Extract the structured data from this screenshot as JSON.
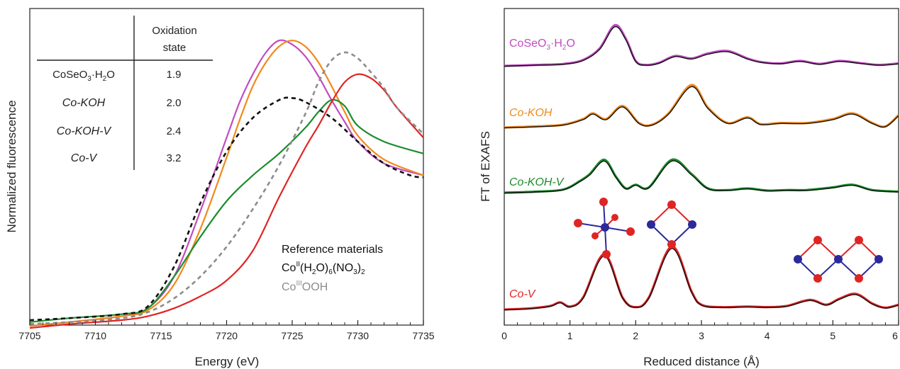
{
  "colors": {
    "CoSeO3_H2O": "#c04cc0",
    "Co_KOH": "#f08a1c",
    "Co_KOH_V": "#1c8c2c",
    "Co_V": "#e02424",
    "ref_CoII": "#111111",
    "ref_CoIII": "#8c8c8c",
    "axis": "#222222",
    "fit": "#111111",
    "O_atom": "#e02424",
    "Co_atom": "#2a2a9c"
  },
  "xanes": {
    "xlabel": "Energy (eV)",
    "ylabel": "Normalized fluorescence",
    "xticks": [
      "7705",
      "7710",
      "7715",
      "7720",
      "7725",
      "7730",
      "7735"
    ],
    "table": {
      "header_line1": "Oxidation",
      "header_line2": "state",
      "rows": [
        {
          "sample_main": "CoSeO",
          "sample_sub": "3",
          "sample_mid": "·H",
          "sample_sub2": "2",
          "sample_end": "O",
          "value": "1.9"
        },
        {
          "sample": "Co-KOH",
          "value": "2.0"
        },
        {
          "sample": "Co-KOH-V",
          "value": "2.4"
        },
        {
          "sample": "Co-V",
          "value": "3.2"
        }
      ]
    },
    "reference": {
      "title": "Reference materials",
      "ref1": {
        "base": "Co",
        "sup": "II",
        "p1": "(H",
        "sub1": "2",
        "p2": "O)",
        "sub2": "6",
        "p3": "(NO",
        "sub3": "3",
        "p4": ")",
        "sub4": "2"
      },
      "ref2": {
        "base": "Co",
        "sup": "III",
        "rest": "OOH"
      }
    }
  },
  "exafs": {
    "xlabel": "Reduced distance (Å)",
    "ylabel": "FT of EXAFS",
    "xticks": [
      "0",
      "1",
      "2",
      "3",
      "4",
      "5",
      "6"
    ],
    "labels": {
      "CoSeO3": {
        "main": "CoSeO",
        "sub": "3",
        "mid": "·H",
        "sub2": "2",
        "end": "O"
      },
      "Co_KOH": "Co-KOH",
      "Co_KOH_V": "Co-KOH-V",
      "Co_V": "Co-V"
    }
  },
  "chart_data": [
    {
      "type": "line",
      "xlabel": "Energy (eV)",
      "ylabel": "Normalized fluorescence",
      "xlim": [
        7705,
        7735
      ],
      "ylim": [
        0,
        1.62
      ],
      "xaxis_ticks": [
        7705,
        7710,
        7715,
        7720,
        7725,
        7730,
        7735
      ],
      "yticks_shown": false,
      "series": [
        {
          "name": "CoSeO3·H2O",
          "style": "solid",
          "color": "#c04cc0",
          "x": [
            7705,
            7708,
            7712,
            7714,
            7716,
            7718,
            7720,
            7721,
            7722,
            7723,
            7724,
            7725,
            7726,
            7727,
            7728,
            7729,
            7730,
            7732,
            7735
          ],
          "y": [
            0.17,
            0.19,
            0.22,
            0.26,
            0.42,
            0.75,
            1.12,
            1.3,
            1.44,
            1.55,
            1.61,
            1.59,
            1.53,
            1.43,
            1.31,
            1.2,
            1.1,
            0.99,
            0.93
          ]
        },
        {
          "name": "Co-KOH",
          "style": "solid",
          "color": "#f08a1c",
          "x": [
            7705,
            7708,
            7712,
            7714,
            7716,
            7718,
            7720,
            7721,
            7722,
            7723,
            7724,
            7725,
            7726,
            7727,
            7728,
            7729,
            7730,
            7732,
            7735
          ],
          "y": [
            0.17,
            0.19,
            0.22,
            0.25,
            0.38,
            0.66,
            1.02,
            1.21,
            1.38,
            1.5,
            1.58,
            1.61,
            1.58,
            1.5,
            1.38,
            1.25,
            1.13,
            1.01,
            0.93
          ]
        },
        {
          "name": "Co-KOH-V",
          "style": "solid",
          "color": "#1c8c2c",
          "x": [
            7705,
            7708,
            7712,
            7714,
            7716,
            7718,
            7720,
            7722,
            7724,
            7726,
            7727,
            7728,
            7729,
            7730,
            7732,
            7735
          ],
          "y": [
            0.19,
            0.21,
            0.23,
            0.26,
            0.42,
            0.62,
            0.8,
            0.93,
            1.04,
            1.17,
            1.25,
            1.31,
            1.28,
            1.18,
            1.1,
            1.04
          ]
        },
        {
          "name": "Co-V",
          "style": "solid",
          "color": "#e02424",
          "x": [
            7705,
            7708,
            7712,
            7714,
            7716,
            7718,
            7720,
            7722,
            7724,
            7726,
            7727,
            7728,
            7729,
            7730,
            7731,
            7732,
            7733,
            7735
          ],
          "y": [
            0.16,
            0.18,
            0.2,
            0.22,
            0.26,
            0.32,
            0.4,
            0.55,
            0.82,
            1.07,
            1.18,
            1.3,
            1.4,
            1.44,
            1.42,
            1.36,
            1.27,
            1.12
          ]
        },
        {
          "name": "Co(II)(H2O)6(NO3)2",
          "style": "dashed",
          "color": "#111111",
          "x": [
            7705,
            7708,
            7712,
            7714,
            7716,
            7718,
            7720,
            7722,
            7724,
            7725,
            7726,
            7728,
            7730,
            7732,
            7734,
            7735
          ],
          "y": [
            0.2,
            0.21,
            0.23,
            0.27,
            0.47,
            0.79,
            1.05,
            1.22,
            1.31,
            1.32,
            1.3,
            1.22,
            1.1,
            0.99,
            0.93,
            0.92
          ]
        },
        {
          "name": "Co(III)OOH",
          "style": "dashed",
          "color": "#8c8c8c",
          "x": [
            7705,
            7708,
            7712,
            7714,
            7716,
            7718,
            7720,
            7722,
            7724,
            7726,
            7727,
            7728,
            7729,
            7730,
            7731,
            7732,
            7733,
            7735
          ],
          "y": [
            0.18,
            0.19,
            0.21,
            0.24,
            0.31,
            0.42,
            0.57,
            0.76,
            0.98,
            1.24,
            1.4,
            1.51,
            1.55,
            1.52,
            1.45,
            1.37,
            1.27,
            1.14
          ]
        }
      ]
    },
    {
      "type": "line",
      "xlabel": "Reduced distance (Å)",
      "ylabel": "FT of EXAFS",
      "xlim": [
        0,
        6
      ],
      "xaxis_ticks": [
        0,
        1,
        2,
        3,
        4,
        5,
        6
      ],
      "yticks_shown": false,
      "offset_stacked": true,
      "series": [
        {
          "name": "CoSeO3·H2O",
          "color": "#c04cc0",
          "offset": 3.0,
          "x": [
            0,
            0.5,
            0.9,
            1.2,
            1.45,
            1.68,
            1.85,
            2.0,
            2.15,
            2.35,
            2.6,
            2.85,
            3.1,
            3.4,
            3.7,
            3.9,
            4.2,
            4.5,
            4.8,
            5.1,
            5.4,
            5.7,
            6.0
          ],
          "y": [
            0.0,
            0.02,
            0.04,
            0.12,
            0.35,
            0.82,
            0.55,
            0.1,
            0.02,
            0.06,
            0.2,
            0.15,
            0.25,
            0.3,
            0.15,
            0.08,
            0.05,
            0.1,
            0.04,
            0.1,
            0.06,
            0.02,
            0.05
          ]
        },
        {
          "name": "Co-KOH",
          "color": "#f08a1c",
          "offset": 2.0,
          "x": [
            0,
            0.5,
            0.9,
            1.2,
            1.35,
            1.55,
            1.8,
            2.05,
            2.25,
            2.5,
            2.85,
            3.1,
            3.4,
            3.7,
            3.9,
            4.2,
            4.6,
            5.0,
            5.3,
            5.6,
            5.8,
            6.0
          ],
          "y": [
            0.0,
            0.02,
            0.05,
            0.15,
            0.25,
            0.15,
            0.38,
            0.08,
            0.05,
            0.25,
            0.75,
            0.35,
            0.08,
            0.18,
            0.06,
            0.08,
            0.08,
            0.15,
            0.25,
            0.08,
            0.02,
            0.22
          ]
        },
        {
          "name": "Co-KOH-V",
          "color": "#1c8c2c",
          "offset": 1.0,
          "x": [
            0,
            0.5,
            0.9,
            1.15,
            1.3,
            1.52,
            1.7,
            1.85,
            2.0,
            2.2,
            2.55,
            2.85,
            3.1,
            3.4,
            3.7,
            4.0,
            4.3,
            4.6,
            5.0,
            5.3,
            5.6,
            6.0
          ],
          "y": [
            0.0,
            0.02,
            0.06,
            0.22,
            0.35,
            0.62,
            0.3,
            0.08,
            0.15,
            0.1,
            0.62,
            0.35,
            0.08,
            0.05,
            0.08,
            0.04,
            0.05,
            0.05,
            0.1,
            0.15,
            0.05,
            0.02
          ]
        },
        {
          "name": "Co-V",
          "color": "#e02424",
          "offset": 0.0,
          "x": [
            0,
            0.4,
            0.7,
            0.85,
            1.0,
            1.2,
            1.52,
            1.8,
            2.0,
            2.2,
            2.55,
            2.85,
            3.0,
            3.3,
            3.7,
            4.0,
            4.3,
            4.65,
            4.9,
            5.1,
            5.35,
            5.6,
            5.8,
            6.0
          ],
          "y": [
            0.0,
            0.02,
            0.06,
            0.12,
            0.05,
            0.2,
            0.92,
            0.2,
            0.04,
            0.2,
            1.05,
            0.3,
            0.08,
            0.04,
            0.05,
            0.04,
            0.06,
            0.16,
            0.08,
            0.18,
            0.26,
            0.1,
            0.03,
            0.08
          ]
        }
      ]
    }
  ]
}
